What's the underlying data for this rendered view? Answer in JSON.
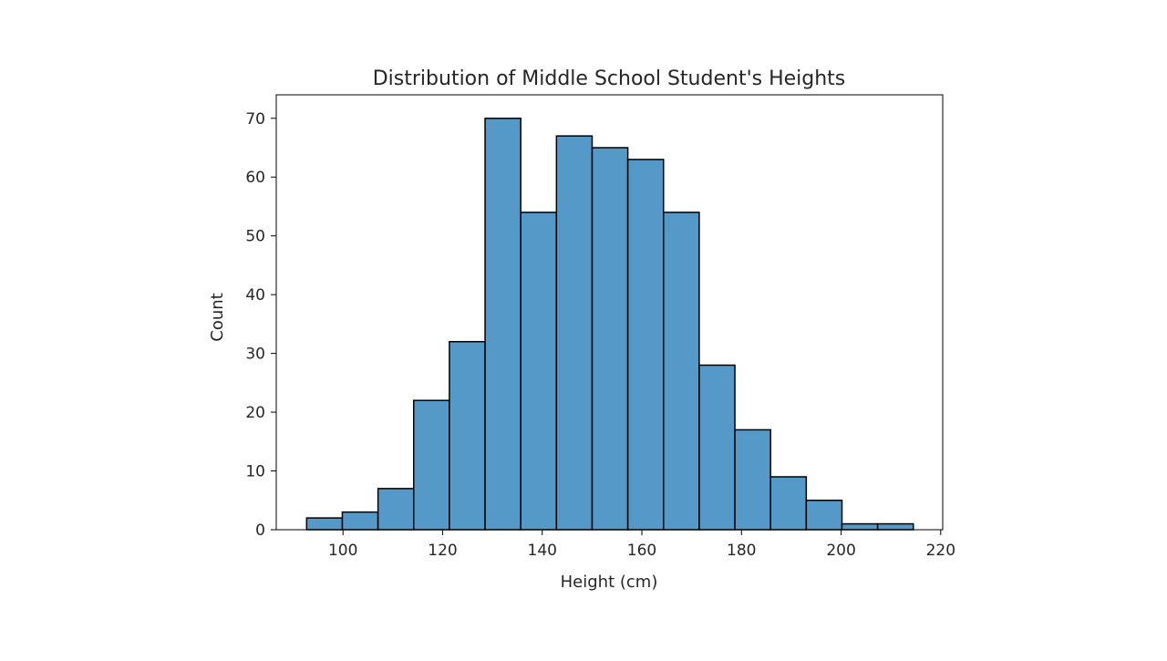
{
  "chart_data": {
    "type": "bar",
    "subtype": "histogram",
    "title": "Distribution of Middle School Student's Heights",
    "xlabel": "Height (cm)",
    "ylabel": "Count",
    "bin_start": 92.7,
    "bin_end": 214.5,
    "values": [
      2,
      3,
      7,
      22,
      32,
      70,
      54,
      67,
      65,
      63,
      54,
      28,
      17,
      9,
      5,
      1,
      1
    ],
    "xlim": [
      86.6,
      220.4
    ],
    "ylim": [
      0,
      74
    ],
    "xticks": [
      100,
      120,
      140,
      160,
      180,
      200,
      220
    ],
    "yticks": [
      0,
      10,
      20,
      30,
      40,
      50,
      60,
      70
    ],
    "grid": false,
    "bar_color": "#5499c7",
    "edge_color": "#000000"
  }
}
